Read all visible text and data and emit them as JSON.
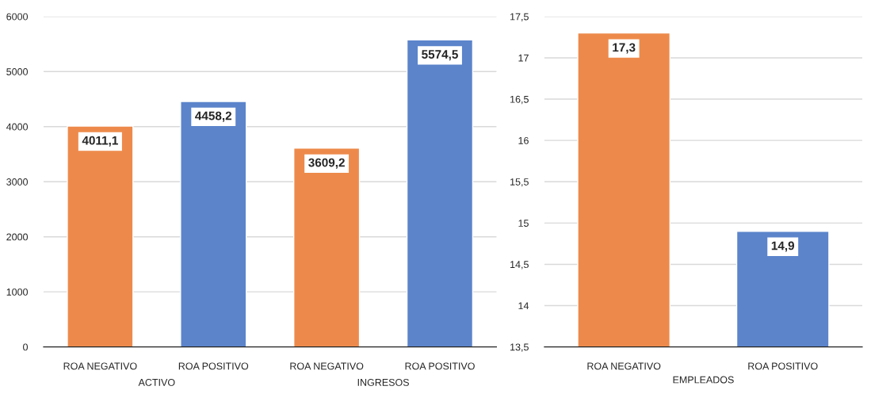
{
  "chart_data": [
    {
      "type": "bar",
      "categories": [
        "ROA NEGATIVO",
        "ROA POSITIVO",
        "ROA NEGATIVO",
        "ROA POSITIVO"
      ],
      "values": [
        4011.1,
        4458.2,
        3609.2,
        5574.5
      ],
      "colors": [
        "#ed8a4b",
        "#5b84cb",
        "#ed8a4b",
        "#5b84cb"
      ],
      "value_labels": [
        "4011,1",
        "4458,2",
        "3609,2",
        "5574,5"
      ],
      "ylim": [
        0,
        6000
      ],
      "yticks": [
        0,
        1000,
        2000,
        3000,
        4000,
        5000,
        6000
      ],
      "grid": "y",
      "annotations": [
        "ACTIVO",
        "INGRESOS"
      ]
    },
    {
      "type": "bar",
      "categories": [
        "ROA NEGATIVO",
        "ROA POSITIVO"
      ],
      "values": [
        17.3,
        14.9
      ],
      "colors": [
        "#ed8a4b",
        "#5b84cb"
      ],
      "value_labels": [
        "17,3",
        "14,9"
      ],
      "ylim": [
        13.5,
        17.5
      ],
      "yticks": [
        {
          "value": 13.5,
          "label": "13,5"
        },
        14,
        {
          "value": 14.5,
          "label": "14,5"
        },
        15,
        {
          "value": 15.5,
          "label": "15,5"
        },
        16,
        {
          "value": 16.5,
          "label": "16,5"
        },
        17,
        {
          "value": 17.5,
          "label": "17,5"
        }
      ],
      "grid": "y",
      "xlabel": "EMPLEADOS"
    }
  ]
}
